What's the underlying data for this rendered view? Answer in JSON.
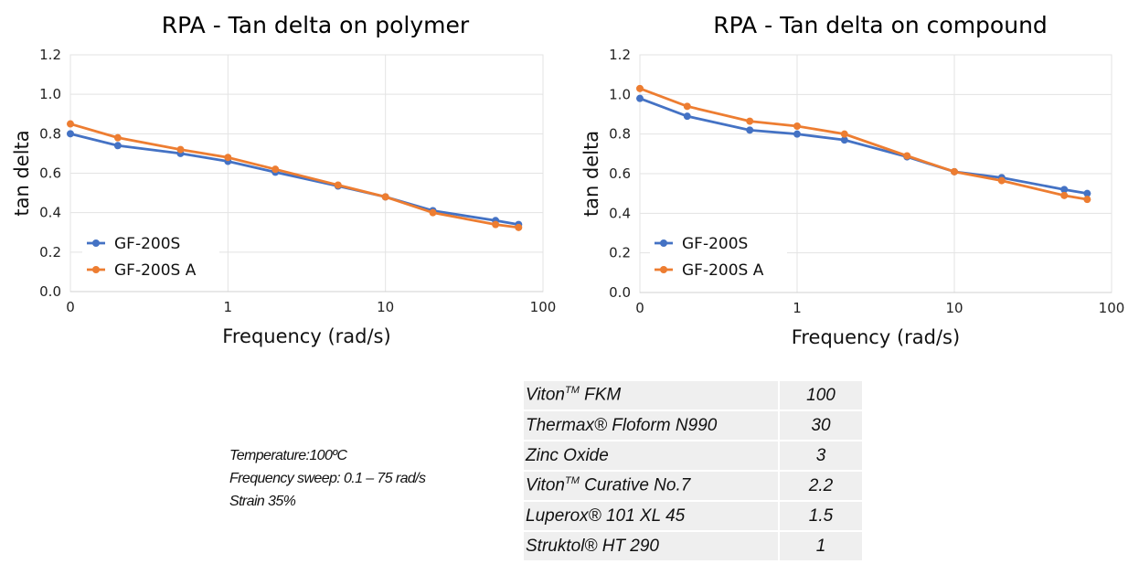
{
  "chart_data": [
    {
      "type": "line",
      "title": "RPA - Tan delta on polymer",
      "xlabel": "Frequency (rad/s)",
      "ylabel": "tan delta",
      "xscale": "log",
      "xlim": [
        0.1,
        100
      ],
      "ylim": [
        0,
        1.2
      ],
      "xticks": [
        "0",
        "1",
        "10",
        "100"
      ],
      "yticks": [
        "0.0",
        "0.2",
        "0.4",
        "0.6",
        "0.8",
        "1.0",
        "1.2"
      ],
      "grid": true,
      "legend": "bottom-left",
      "x": [
        0.1,
        0.2,
        0.5,
        1,
        2,
        5,
        10,
        20,
        50,
        70
      ],
      "series": [
        {
          "name": "GF-200S",
          "color": "#4472C4",
          "values": [
            0.8,
            0.74,
            0.7,
            0.66,
            0.605,
            0.535,
            0.48,
            0.41,
            0.36,
            0.34
          ]
        },
        {
          "name": "GF-200S A",
          "color": "#ED7D31",
          "values": [
            0.85,
            0.78,
            0.72,
            0.68,
            0.62,
            0.54,
            0.48,
            0.4,
            0.34,
            0.325
          ]
        }
      ]
    },
    {
      "type": "line",
      "title": "RPA - Tan delta on compound",
      "xlabel": "Frequency (rad/s)",
      "ylabel": "tan delta",
      "xscale": "log",
      "xlim": [
        0.1,
        100
      ],
      "ylim": [
        0,
        1.2
      ],
      "xticks": [
        "0",
        "1",
        "10",
        "100"
      ],
      "yticks": [
        "0.0",
        "0.2",
        "0.4",
        "0.6",
        "0.8",
        "1.0",
        "1.2"
      ],
      "grid": true,
      "legend": "bottom-left",
      "x": [
        0.1,
        0.2,
        0.5,
        1,
        2,
        5,
        10,
        20,
        50,
        70
      ],
      "series": [
        {
          "name": "GF-200S",
          "color": "#4472C4",
          "values": [
            0.98,
            0.89,
            0.82,
            0.8,
            0.77,
            0.685,
            0.61,
            0.58,
            0.52,
            0.5
          ]
        },
        {
          "name": "GF-200S A",
          "color": "#ED7D31",
          "values": [
            1.03,
            0.94,
            0.865,
            0.84,
            0.8,
            0.69,
            0.61,
            0.565,
            0.49,
            0.47
          ]
        }
      ]
    }
  ],
  "conditions": [
    "Temperature:100ºC",
    "Frequency sweep: 0.1 – 75 rad/s",
    "Strain 35%"
  ],
  "formulation": [
    {
      "name": "Viton",
      "sup": "TM",
      "suffix": " FKM",
      "value": "100"
    },
    {
      "name": "Thermax® Floform N990",
      "sup": "",
      "suffix": "",
      "value": "30"
    },
    {
      "name": "Zinc Oxide",
      "sup": "",
      "suffix": "",
      "value": "3"
    },
    {
      "name": "Viton",
      "sup": "TM",
      "suffix": " Curative No.7",
      "value": "2.2"
    },
    {
      "name": "Luperox® 101 XL 45",
      "sup": "",
      "suffix": "",
      "value": "1.5"
    },
    {
      "name": "Struktol® HT 290",
      "sup": "",
      "suffix": "",
      "value": "1"
    }
  ]
}
